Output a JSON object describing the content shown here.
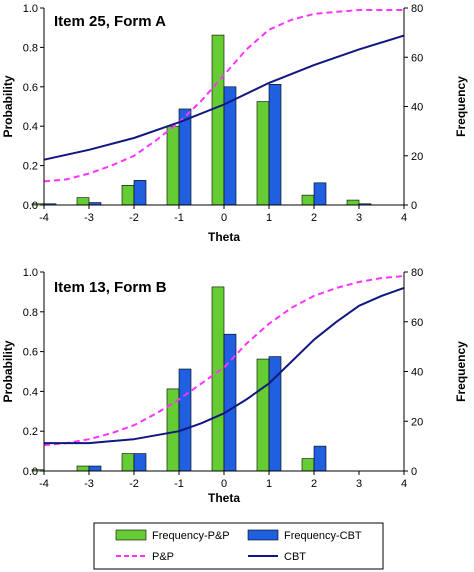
{
  "colors": {
    "pp_bar": "#66cc33",
    "cbt_bar": "#1f5fe0",
    "pp_line": "#ff33ff",
    "cbt_line": "#101880"
  },
  "legend": {
    "freq_pp": "Frequency-P&P",
    "freq_cbt": "Frequency-CBT",
    "pp": "P&P",
    "cbt": "CBT"
  },
  "chart_data": [
    {
      "type": "bar+line",
      "title": "Item 25, Form A",
      "xlabel": "Theta",
      "ylabel_left": "Probability",
      "ylabel_right": "Frequency",
      "xlim": [
        -4,
        4
      ],
      "ylim_left": [
        0,
        1.0
      ],
      "ylim_right": [
        0,
        80
      ],
      "x_ticks": [
        "-4",
        "-3",
        "-2",
        "-1",
        "0",
        "1",
        "2",
        "3",
        "4"
      ],
      "y_ticks_left": [
        "0.0",
        "0.2",
        "0.4",
        "0.6",
        "0.8",
        "1.0"
      ],
      "y_ticks_right": [
        "0",
        "20",
        "40",
        "60",
        "80"
      ],
      "categories": [
        -4,
        -3,
        -2,
        -1,
        0,
        1,
        2,
        3
      ],
      "bars": [
        {
          "name": "Frequency-P&P",
          "values": [
            0.5,
            3,
            8,
            32,
            69,
            42,
            4,
            2
          ]
        },
        {
          "name": "Frequency-CBT",
          "values": [
            0.5,
            1,
            10,
            39,
            48,
            49,
            9,
            0.5
          ]
        }
      ],
      "lines": [
        {
          "name": "P&P",
          "x": [
            -4,
            -3.5,
            -3,
            -2.5,
            -2,
            -1.5,
            -1,
            -0.5,
            0,
            0.5,
            1,
            1.5,
            2,
            2.5,
            3,
            3.5,
            4
          ],
          "y": [
            0.12,
            0.13,
            0.16,
            0.2,
            0.25,
            0.33,
            0.42,
            0.53,
            0.66,
            0.79,
            0.89,
            0.94,
            0.97,
            0.98,
            0.99,
            0.99,
            0.99
          ]
        },
        {
          "name": "CBT",
          "x": [
            -4,
            -3,
            -2,
            -1,
            0,
            1,
            2,
            3,
            4
          ],
          "y": [
            0.23,
            0.28,
            0.34,
            0.42,
            0.51,
            0.62,
            0.71,
            0.79,
            0.86
          ]
        }
      ]
    },
    {
      "type": "bar+line",
      "title": "Item 13, Form B",
      "xlabel": "Theta",
      "ylabel_left": "Probability",
      "ylabel_right": "Frequency",
      "xlim": [
        -4,
        4
      ],
      "ylim_left": [
        0,
        1.0
      ],
      "ylim_right": [
        0,
        80
      ],
      "x_ticks": [
        "-4",
        "-3",
        "-2",
        "-1",
        "0",
        "1",
        "2",
        "3",
        "4"
      ],
      "y_ticks_left": [
        "0.0",
        "0.2",
        "0.4",
        "0.6",
        "0.8",
        "1.0"
      ],
      "y_ticks_right": [
        "0",
        "20",
        "40",
        "60",
        "80"
      ],
      "categories": [
        -4,
        -3,
        -2,
        -1,
        0,
        1,
        2,
        3
      ],
      "bars": [
        {
          "name": "Frequency-P&P",
          "values": [
            0.5,
            2,
            7,
            33,
            74,
            45,
            5,
            0
          ]
        },
        {
          "name": "Frequency-CBT",
          "values": [
            0,
            2,
            7,
            41,
            55,
            46,
            10,
            0
          ]
        }
      ],
      "lines": [
        {
          "name": "P&P",
          "x": [
            -4,
            -3.5,
            -3,
            -2.5,
            -2,
            -1.5,
            -1,
            -0.5,
            0,
            0.5,
            1,
            1.5,
            2,
            2.5,
            3,
            3.5,
            4
          ],
          "y": [
            0.13,
            0.14,
            0.16,
            0.19,
            0.23,
            0.29,
            0.36,
            0.44,
            0.52,
            0.64,
            0.74,
            0.82,
            0.88,
            0.92,
            0.95,
            0.97,
            0.98
          ]
        },
        {
          "name": "CBT",
          "x": [
            -4,
            -3.5,
            -3,
            -2.5,
            -2,
            -1.5,
            -1,
            -0.5,
            0,
            0.5,
            1,
            1.5,
            2,
            2.5,
            3,
            3.5,
            4
          ],
          "y": [
            0.14,
            0.14,
            0.14,
            0.15,
            0.16,
            0.18,
            0.2,
            0.24,
            0.29,
            0.36,
            0.44,
            0.55,
            0.66,
            0.75,
            0.83,
            0.88,
            0.92
          ]
        }
      ]
    }
  ]
}
